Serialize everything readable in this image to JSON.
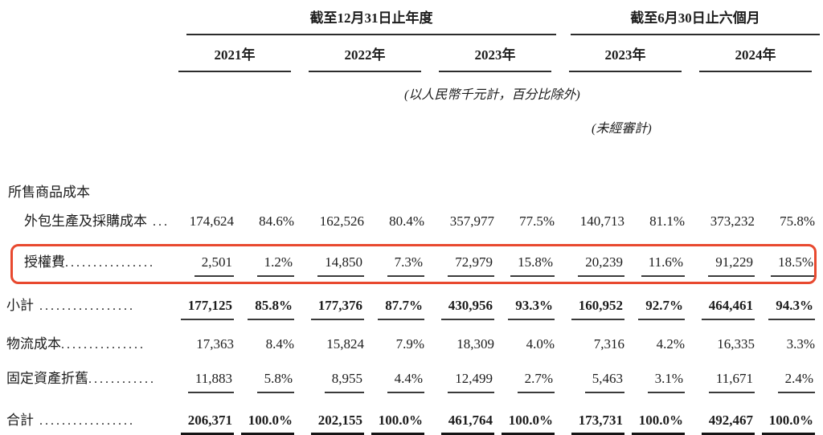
{
  "header": {
    "annual_group": "截至12月31日止年度",
    "interim_group": "截至6月30日止六個月",
    "annual_years": [
      "2021年",
      "2022年",
      "2023年"
    ],
    "interim_years": [
      "2023年",
      "2024年"
    ],
    "unit_note": "(以人民幣千元計，百分比除外)",
    "unaudited_note": "(未經審計)"
  },
  "section_title": "所售商品成本",
  "highlight_color": "#e8492f",
  "rows": [
    {
      "label": "外包生產及採購成本",
      "dots": " ....",
      "values": [
        "174,624",
        "84.6%",
        "162,526",
        "80.4%",
        "357,977",
        "77.5%",
        "140,713",
        "81.1%",
        "373,232",
        "75.8%"
      ]
    },
    {
      "label": "授權費",
      "dots": "................",
      "values": [
        "2,501",
        "1.2%",
        "14,850",
        "7.3%",
        "72,979",
        "15.8%",
        "20,239",
        "11.6%",
        "91,229",
        "18.5%"
      ]
    },
    {
      "label": "小計",
      "dots": " .................",
      "values": [
        "177,125",
        "85.8%",
        "177,376",
        "87.7%",
        "430,956",
        "93.3%",
        "160,952",
        "92.7%",
        "464,461",
        "94.3%"
      ]
    },
    {
      "label": "物流成本",
      "dots": "...............",
      "values": [
        "17,363",
        "8.4%",
        "15,824",
        "7.9%",
        "18,309",
        "4.0%",
        "7,316",
        "4.2%",
        "16,335",
        "3.3%"
      ]
    },
    {
      "label": "固定資產折舊",
      "dots": "............",
      "values": [
        "11,883",
        "5.8%",
        "8,955",
        "4.4%",
        "12,499",
        "2.7%",
        "5,463",
        "3.1%",
        "11,671",
        "2.4%"
      ]
    },
    {
      "label": "合計",
      "dots": " .................",
      "values": [
        "206,371",
        "100.0%",
        "202,155",
        "100.0%",
        "461,764",
        "100.0%",
        "173,731",
        "100.0%",
        "492,467",
        "100.0%"
      ]
    }
  ]
}
